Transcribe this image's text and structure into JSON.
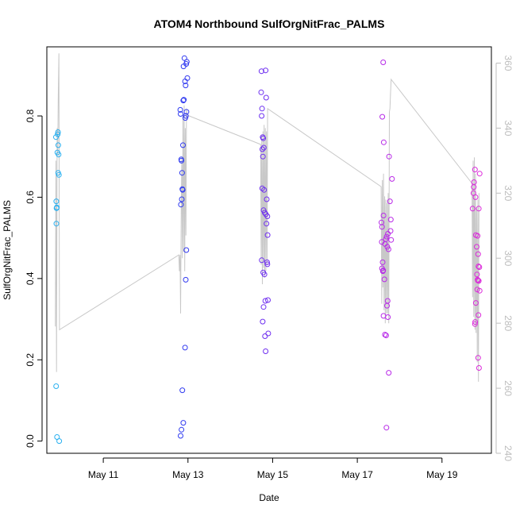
{
  "chart_data": {
    "type": "scatter",
    "title": "ATOM4 Northbound SulfOrgNitFrac_PALMS",
    "xlabel": "Date",
    "ylabel": "SulfOrgNitFrac_PALMS",
    "xlim": [
      "2016-05-09T16:00",
      "2016-05-20T04:00"
    ],
    "ylim": [
      -0.03,
      0.97
    ],
    "y2lim": [
      240,
      365
    ],
    "x_ticks": [
      {
        "date": "2016-05-11",
        "label": "May 11"
      },
      {
        "date": "2016-05-13",
        "label": "May 13"
      },
      {
        "date": "2016-05-15",
        "label": "May 15"
      },
      {
        "date": "2016-05-17",
        "label": "May 17"
      },
      {
        "date": "2016-05-19",
        "label": "May 19"
      }
    ],
    "y_ticks": [
      "0.0",
      "0.2",
      "0.4",
      "0.6",
      "0.8"
    ],
    "y_tick_values": [
      0.0,
      0.2,
      0.4,
      0.6,
      0.8
    ],
    "y2_ticks": [
      "240",
      "260",
      "280",
      "300",
      "320",
      "340",
      "360"
    ],
    "y2_tick_values": [
      240,
      260,
      280,
      300,
      320,
      340,
      360
    ],
    "grid": false,
    "legend": "none",
    "colors": {
      "line": "#c8c8c8",
      "right_axis": "#bdbdbd",
      "ramp": [
        "#2ab0f0",
        "#2a3cf0",
        "#7a2cf0",
        "#b82ae8",
        "#e02ad8"
      ]
    },
    "series": [
      {
        "points": [
          {
            "x": "2016-05-09T21:10",
            "y": 0.748
          },
          {
            "x": "2016-05-09T21:20",
            "y": 0.59
          },
          {
            "x": "2016-05-09T21:30",
            "y": 0.573
          },
          {
            "x": "2016-05-09T21:25",
            "y": 0.535
          },
          {
            "x": "2016-05-09T21:40",
            "y": 0.575
          },
          {
            "x": "2016-05-09T21:15",
            "y": 0.135
          },
          {
            "x": "2016-05-09T21:45",
            "y": 0.01
          },
          {
            "x": "2016-05-09T22:00",
            "y": 0.71
          },
          {
            "x": "2016-05-09T22:10",
            "y": 0.755
          },
          {
            "x": "2016-05-09T22:20",
            "y": 0.76
          },
          {
            "x": "2016-05-09T22:30",
            "y": 0.728
          },
          {
            "x": "2016-05-09T22:40",
            "y": 0.705
          },
          {
            "x": "2016-05-09T22:25",
            "y": 0.66
          },
          {
            "x": "2016-05-09T22:50",
            "y": 0.655
          },
          {
            "x": "2016-05-09T23:00",
            "y": 0.0
          },
          {
            "x": "2016-05-12T19:40",
            "y": 0.815
          },
          {
            "x": "2016-05-12T19:50",
            "y": 0.805
          },
          {
            "x": "2016-05-12T20:10",
            "y": 0.693
          },
          {
            "x": "2016-05-12T20:20",
            "y": 0.69
          },
          {
            "x": "2016-05-12T20:40",
            "y": 0.66
          },
          {
            "x": "2016-05-12T20:00",
            "y": 0.582
          },
          {
            "x": "2016-05-12T20:30",
            "y": 0.595
          },
          {
            "x": "2016-05-12T20:50",
            "y": 0.62
          },
          {
            "x": "2016-05-12T21:00",
            "y": 0.618
          },
          {
            "x": "2016-05-12T21:10",
            "y": 0.728
          },
          {
            "x": "2016-05-12T21:20",
            "y": 0.838
          },
          {
            "x": "2016-05-12T21:40",
            "y": 0.84
          },
          {
            "x": "2016-05-12T21:30",
            "y": 0.922
          },
          {
            "x": "2016-05-12T22:00",
            "y": 0.942
          },
          {
            "x": "2016-05-12T22:20",
            "y": 0.885
          },
          {
            "x": "2016-05-12T22:40",
            "y": 0.875
          },
          {
            "x": "2016-05-12T23:00",
            "y": 0.928
          },
          {
            "x": "2016-05-12T23:20",
            "y": 0.933
          },
          {
            "x": "2016-05-12T23:40",
            "y": 0.893
          },
          {
            "x": "2016-05-12T22:50",
            "y": 0.8
          },
          {
            "x": "2016-05-12T23:10",
            "y": 0.81
          },
          {
            "x": "2016-05-12T22:30",
            "y": 0.795
          },
          {
            "x": "2016-05-12T23:05",
            "y": 0.47
          },
          {
            "x": "2016-05-12T22:45",
            "y": 0.397
          },
          {
            "x": "2016-05-12T22:20",
            "y": 0.23
          },
          {
            "x": "2016-05-12T20:50",
            "y": 0.125
          },
          {
            "x": "2016-05-12T21:20",
            "y": 0.045
          },
          {
            "x": "2016-05-12T20:20",
            "y": 0.028
          },
          {
            "x": "2016-05-12T19:50",
            "y": 0.013
          },
          {
            "x": "2016-05-14T17:40",
            "y": 0.91
          },
          {
            "x": "2016-05-14T17:30",
            "y": 0.858
          },
          {
            "x": "2016-05-14T18:00",
            "y": 0.818
          },
          {
            "x": "2016-05-14T17:45",
            "y": 0.8
          },
          {
            "x": "2016-05-14T18:20",
            "y": 0.748
          },
          {
            "x": "2016-05-14T18:40",
            "y": 0.745
          },
          {
            "x": "2016-05-14T18:10",
            "y": 0.718
          },
          {
            "x": "2016-05-14T18:30",
            "y": 0.7
          },
          {
            "x": "2016-05-14T19:00",
            "y": 0.722
          },
          {
            "x": "2016-05-14T20:00",
            "y": 0.912
          },
          {
            "x": "2016-05-14T20:20",
            "y": 0.845
          },
          {
            "x": "2016-05-14T18:05",
            "y": 0.622
          },
          {
            "x": "2016-05-14T19:10",
            "y": 0.618
          },
          {
            "x": "2016-05-14T20:40",
            "y": 0.595
          },
          {
            "x": "2016-05-14T18:50",
            "y": 0.568
          },
          {
            "x": "2016-05-14T19:30",
            "y": 0.562
          },
          {
            "x": "2016-05-14T20:10",
            "y": 0.558
          },
          {
            "x": "2016-05-14T21:00",
            "y": 0.553
          },
          {
            "x": "2016-05-14T20:30",
            "y": 0.535
          },
          {
            "x": "2016-05-14T21:10",
            "y": 0.507
          },
          {
            "x": "2016-05-14T17:50",
            "y": 0.445
          },
          {
            "x": "2016-05-14T20:50",
            "y": 0.44
          },
          {
            "x": "2016-05-14T21:00",
            "y": 0.435
          },
          {
            "x": "2016-05-14T18:40",
            "y": 0.415
          },
          {
            "x": "2016-05-14T19:20",
            "y": 0.41
          },
          {
            "x": "2016-05-14T19:50",
            "y": 0.345
          },
          {
            "x": "2016-05-14T21:20",
            "y": 0.347
          },
          {
            "x": "2016-05-14T18:50",
            "y": 0.33
          },
          {
            "x": "2016-05-14T18:20",
            "y": 0.294
          },
          {
            "x": "2016-05-14T21:30",
            "y": 0.265
          },
          {
            "x": "2016-05-14T19:40",
            "y": 0.258
          },
          {
            "x": "2016-05-14T20:00",
            "y": 0.221
          },
          {
            "x": "2016-05-17T14:40",
            "y": 0.932
          },
          {
            "x": "2016-05-17T14:10",
            "y": 0.798
          },
          {
            "x": "2016-05-17T15:00",
            "y": 0.735
          },
          {
            "x": "2016-05-17T18:00",
            "y": 0.7
          },
          {
            "x": "2016-05-17T19:40",
            "y": 0.645
          },
          {
            "x": "2016-05-17T18:30",
            "y": 0.59
          },
          {
            "x": "2016-05-17T14:50",
            "y": 0.555
          },
          {
            "x": "2016-05-17T19:00",
            "y": 0.545
          },
          {
            "x": "2016-05-17T13:40",
            "y": 0.538
          },
          {
            "x": "2016-05-17T14:00",
            "y": 0.527
          },
          {
            "x": "2016-05-17T18:50",
            "y": 0.517
          },
          {
            "x": "2016-05-17T17:20",
            "y": 0.51
          },
          {
            "x": "2016-05-17T16:40",
            "y": 0.503
          },
          {
            "x": "2016-05-17T16:10",
            "y": 0.497
          },
          {
            "x": "2016-05-17T19:10",
            "y": 0.495
          },
          {
            "x": "2016-05-17T13:50",
            "y": 0.49
          },
          {
            "x": "2016-05-17T15:40",
            "y": 0.485
          },
          {
            "x": "2016-05-17T17:00",
            "y": 0.478
          },
          {
            "x": "2016-05-17T17:40",
            "y": 0.472
          },
          {
            "x": "2016-05-17T14:20",
            "y": 0.44
          },
          {
            "x": "2016-05-17T14:00",
            "y": 0.425
          },
          {
            "x": "2016-05-17T14:40",
            "y": 0.42
          },
          {
            "x": "2016-05-17T14:30",
            "y": 0.418
          },
          {
            "x": "2016-05-17T15:20",
            "y": 0.398
          },
          {
            "x": "2016-05-17T17:10",
            "y": 0.345
          },
          {
            "x": "2016-05-17T16:50",
            "y": 0.333
          },
          {
            "x": "2016-05-17T14:50",
            "y": 0.308
          },
          {
            "x": "2016-05-17T17:20",
            "y": 0.305
          },
          {
            "x": "2016-05-17T15:40",
            "y": 0.262
          },
          {
            "x": "2016-05-17T16:20",
            "y": 0.26
          },
          {
            "x": "2016-05-17T17:50",
            "y": 0.168
          },
          {
            "x": "2016-05-17T16:30",
            "y": 0.033
          },
          {
            "x": "2016-05-19T18:40",
            "y": 0.668
          },
          {
            "x": "2016-05-19T21:20",
            "y": 0.658
          },
          {
            "x": "2016-05-19T18:10",
            "y": 0.637
          },
          {
            "x": "2016-05-19T18:00",
            "y": 0.625
          },
          {
            "x": "2016-05-19T17:50",
            "y": 0.61
          },
          {
            "x": "2016-05-19T19:00",
            "y": 0.6
          },
          {
            "x": "2016-05-19T17:20",
            "y": 0.572
          },
          {
            "x": "2016-05-19T20:50",
            "y": 0.572
          },
          {
            "x": "2016-05-19T19:10",
            "y": 0.507
          },
          {
            "x": "2016-05-19T20:10",
            "y": 0.505
          },
          {
            "x": "2016-05-19T19:40",
            "y": 0.478
          },
          {
            "x": "2016-05-19T20:30",
            "y": 0.46
          },
          {
            "x": "2016-05-19T20:40",
            "y": 0.43
          },
          {
            "x": "2016-05-19T21:10",
            "y": 0.428
          },
          {
            "x": "2016-05-19T19:50",
            "y": 0.41
          },
          {
            "x": "2016-05-19T20:10",
            "y": 0.397
          },
          {
            "x": "2016-05-19T20:20",
            "y": 0.395
          },
          {
            "x": "2016-05-19T20:50",
            "y": 0.394
          },
          {
            "x": "2016-05-19T20:00",
            "y": 0.373
          },
          {
            "x": "2016-05-19T21:20",
            "y": 0.37
          },
          {
            "x": "2016-05-19T19:10",
            "y": 0.34
          },
          {
            "x": "2016-05-19T20:40",
            "y": 0.31
          },
          {
            "x": "2016-05-19T18:50",
            "y": 0.293
          },
          {
            "x": "2016-05-19T18:40",
            "y": 0.288
          },
          {
            "x": "2016-05-19T20:30",
            "y": 0.205
          },
          {
            "x": "2016-05-19T21:00",
            "y": 0.18
          }
        ]
      },
      {
        "axis": "right",
        "points": [
          {
            "x": "2016-05-09T20:50",
            "y": 279
          },
          {
            "x": "2016-05-09T21:10",
            "y": 330
          },
          {
            "x": "2016-05-09T21:30",
            "y": 265
          },
          {
            "x": "2016-05-09T21:50",
            "y": 340
          },
          {
            "x": "2016-05-09T22:10",
            "y": 332
          },
          {
            "x": "2016-05-09T22:30",
            "y": 350
          },
          {
            "x": "2016-05-09T22:50",
            "y": 363
          },
          {
            "x": "2016-05-09T23:10",
            "y": 278
          },
          {
            "x": "2016-05-12T18:50",
            "y": 301
          },
          {
            "x": "2016-05-12T19:10",
            "y": 296
          },
          {
            "x": "2016-05-12T19:30",
            "y": 301
          },
          {
            "x": "2016-05-12T19:50",
            "y": 283
          },
          {
            "x": "2016-05-12T20:10",
            "y": 315
          },
          {
            "x": "2016-05-12T20:30",
            "y": 331
          },
          {
            "x": "2016-05-12T20:50",
            "y": 300
          },
          {
            "x": "2016-05-12T21:10",
            "y": 344
          },
          {
            "x": "2016-05-12T21:30",
            "y": 302
          },
          {
            "x": "2016-05-12T21:50",
            "y": 347
          },
          {
            "x": "2016-05-12T22:10",
            "y": 296
          },
          {
            "x": "2016-05-12T22:30",
            "y": 340
          },
          {
            "x": "2016-05-12T22:50",
            "y": 307
          },
          {
            "x": "2016-05-12T23:10",
            "y": 346
          },
          {
            "x": "2016-05-12T23:30",
            "y": 344
          },
          {
            "x": "2016-05-14T17:10",
            "y": 335
          },
          {
            "x": "2016-05-14T17:30",
            "y": 298
          },
          {
            "x": "2016-05-14T17:50",
            "y": 338
          },
          {
            "x": "2016-05-14T18:10",
            "y": 292
          },
          {
            "x": "2016-05-14T18:30",
            "y": 339
          },
          {
            "x": "2016-05-14T18:50",
            "y": 297
          },
          {
            "x": "2016-05-14T19:10",
            "y": 341
          },
          {
            "x": "2016-05-14T19:30",
            "y": 294
          },
          {
            "x": "2016-05-14T19:50",
            "y": 340
          },
          {
            "x": "2016-05-14T20:10",
            "y": 296
          },
          {
            "x": "2016-05-14T20:30",
            "y": 339
          },
          {
            "x": "2016-05-14T20:50",
            "y": 298
          },
          {
            "x": "2016-05-14T21:10",
            "y": 346
          },
          {
            "x": "2016-05-17T13:30",
            "y": 322
          },
          {
            "x": "2016-05-17T13:50",
            "y": 286
          },
          {
            "x": "2016-05-17T14:10",
            "y": 324
          },
          {
            "x": "2016-05-17T14:30",
            "y": 291
          },
          {
            "x": "2016-05-17T14:50",
            "y": 326
          },
          {
            "x": "2016-05-17T15:10",
            "y": 284
          },
          {
            "x": "2016-05-17T15:30",
            "y": 319
          },
          {
            "x": "2016-05-17T15:50",
            "y": 280
          },
          {
            "x": "2016-05-17T16:10",
            "y": 318
          },
          {
            "x": "2016-05-17T16:30",
            "y": 283
          },
          {
            "x": "2016-05-17T16:50",
            "y": 317
          },
          {
            "x": "2016-05-17T17:10",
            "y": 283
          },
          {
            "x": "2016-05-17T17:30",
            "y": 320
          },
          {
            "x": "2016-05-17T17:50",
            "y": 280
          },
          {
            "x": "2016-05-17T18:10",
            "y": 345
          },
          {
            "x": "2016-05-17T18:30",
            "y": 346
          },
          {
            "x": "2016-05-17T18:50",
            "y": 351
          },
          {
            "x": "2016-05-17T19:10",
            "y": 355
          },
          {
            "x": "2016-05-19T17:00",
            "y": 323
          },
          {
            "x": "2016-05-19T17:20",
            "y": 288
          },
          {
            "x": "2016-05-19T17:40",
            "y": 330
          },
          {
            "x": "2016-05-19T18:00",
            "y": 282
          },
          {
            "x": "2016-05-19T18:20",
            "y": 331
          },
          {
            "x": "2016-05-19T18:40",
            "y": 278
          },
          {
            "x": "2016-05-19T19:00",
            "y": 326
          },
          {
            "x": "2016-05-19T19:20",
            "y": 277
          },
          {
            "x": "2016-05-19T19:40",
            "y": 315
          },
          {
            "x": "2016-05-19T20:00",
            "y": 268
          },
          {
            "x": "2016-05-19T20:20",
            "y": 318
          },
          {
            "x": "2016-05-19T20:40",
            "y": 262
          },
          {
            "x": "2016-05-19T21:00",
            "y": 320
          }
        ]
      }
    ]
  }
}
